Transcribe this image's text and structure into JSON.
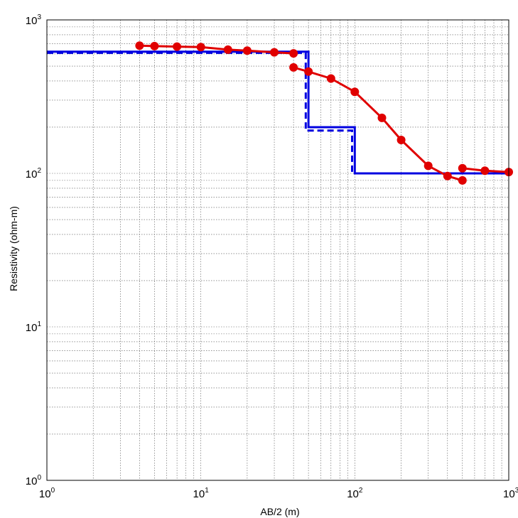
{
  "chart_data": {
    "type": "line",
    "xscale": "log",
    "yscale": "log",
    "xlim": [
      1,
      1000
    ],
    "ylim": [
      1,
      1000
    ],
    "xlabel": "AB/2 (m)",
    "ylabel": "Resistivity (ohm-m)",
    "grid": true,
    "x_ticks": [
      {
        "base": "10",
        "exp": "0",
        "value": 1
      },
      {
        "base": "10",
        "exp": "1",
        "value": 10
      },
      {
        "base": "10",
        "exp": "2",
        "value": 100
      },
      {
        "base": "10",
        "exp": "3",
        "value": 1000
      }
    ],
    "y_ticks": [
      {
        "base": "10",
        "exp": "0",
        "value": 1
      },
      {
        "base": "10",
        "exp": "1",
        "value": 10
      },
      {
        "base": "10",
        "exp": "2",
        "value": 100
      },
      {
        "base": "10",
        "exp": "3",
        "value": 1000
      }
    ],
    "series": [
      {
        "style": "red-line-markers",
        "color": "#e00000",
        "segments": [
          {
            "x": [
              4,
              5,
              7,
              10,
              15,
              20,
              30,
              40
            ],
            "y": [
              680,
              675,
              670,
              665,
              640,
              630,
              615,
              605
            ]
          },
          {
            "x": [
              40,
              50,
              70,
              100,
              150,
              200,
              300,
              400,
              500
            ],
            "y": [
              490,
              460,
              415,
              340,
              230,
              165,
              112,
              96,
              90
            ]
          },
          {
            "x": [
              500,
              700,
              1000
            ],
            "y": [
              108,
              104,
              102
            ]
          }
        ]
      },
      {
        "style": "blue-solid-step",
        "color": "#0000e0",
        "x": [
          1,
          50,
          50,
          100,
          100,
          1000
        ],
        "y": [
          620,
          620,
          200,
          200,
          100,
          100
        ]
      },
      {
        "style": "blue-dashed-step",
        "color": "#0000e0",
        "x": [
          1,
          48,
          48,
          96,
          96,
          1000
        ],
        "y": [
          610,
          610,
          190,
          190,
          100,
          100
        ]
      }
    ]
  }
}
